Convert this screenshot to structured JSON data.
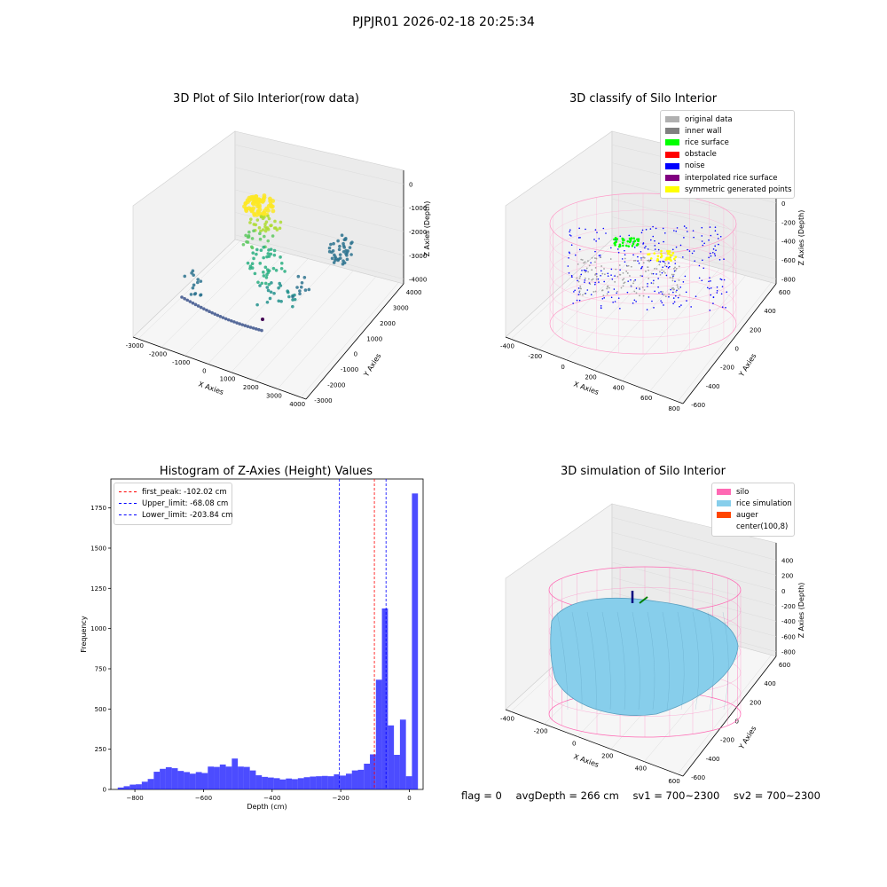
{
  "suptitle": "PJPJR01 2026-02-18 20:25:34",
  "status": {
    "flag": "flag = 0",
    "avg_depth": "avgDepth = 266 cm",
    "sv1": "sv1 = 700~2300",
    "sv2": "sv2 = 700~2300"
  },
  "chart_data": [
    {
      "type": "scatter",
      "title": "3D Plot of Silo Interior(row data)",
      "xlabel": "X Axies",
      "ylabel": "Y Axies",
      "zlabel": "Z Axies (Depth)",
      "xticks": [
        "-3000",
        "-2000",
        "-1000",
        "0",
        "1000",
        "2000",
        "3000",
        "4000"
      ],
      "yticks": [
        "-3000",
        "-2000",
        "-1000",
        "0",
        "1000",
        "2000",
        "3000",
        "4000"
      ],
      "zticks": [
        "0",
        "-1000",
        "-2000",
        "-3000",
        "-4000"
      ],
      "colormap": "viridis"
    },
    {
      "type": "scatter",
      "title": "3D classify of Silo Interior",
      "xlabel": "X Axies",
      "ylabel": "Y Axies",
      "zlabel": "Z Axies (Depth)",
      "xticks": [
        "-400",
        "-200",
        "0",
        "200",
        "400",
        "600",
        "800"
      ],
      "yticks": [
        "-600",
        "-400",
        "-200",
        "0",
        "200",
        "400",
        "600"
      ],
      "zticks": [
        "200",
        "0",
        "-200",
        "-400",
        "-600",
        "-800"
      ],
      "legend": [
        {
          "label": "original data",
          "color": "#b0b0b0"
        },
        {
          "label": "inner wall",
          "color": "#808080"
        },
        {
          "label": "rice surface",
          "color": "#00ff00"
        },
        {
          "label": "obstacle",
          "color": "#ff0000"
        },
        {
          "label": "noise",
          "color": "#0000ff"
        },
        {
          "label": "interpolated rice surface",
          "color": "#800080"
        },
        {
          "label": "symmetric generated points",
          "color": "#ffff00"
        }
      ]
    },
    {
      "type": "bar",
      "title": "Histogram of Z-Axies (Height) Values",
      "xlabel": "Depth (cm)",
      "ylabel": "Frequency",
      "xlim": [
        -870,
        40
      ],
      "ylim": [
        0,
        1930
      ],
      "xticks": [
        -800,
        -600,
        -400,
        -200,
        0
      ],
      "yticks": [
        0,
        250,
        500,
        750,
        1000,
        1250,
        1500,
        1750
      ],
      "bin_start": -850,
      "bin_width": 17.5,
      "values": [
        12,
        20,
        30,
        32,
        48,
        65,
        110,
        128,
        138,
        132,
        115,
        108,
        98,
        108,
        102,
        142,
        140,
        155,
        142,
        192,
        142,
        140,
        118,
        88,
        78,
        74,
        70,
        62,
        68,
        64,
        70,
        76,
        80,
        82,
        84,
        82,
        94,
        86,
        98,
        118,
        122,
        160,
        218,
        682,
        1125,
        398,
        215,
        434,
        82,
        1840
      ],
      "color": "#0000ff",
      "lines": [
        {
          "label": "first_peak: -102.02 cm",
          "x": -102.02,
          "color": "#ff0000"
        },
        {
          "label": "Upper_limit: -68.08 cm",
          "x": -68.08,
          "color": "#0000ff"
        },
        {
          "label": "Lower_limit: -203.84 cm",
          "x": -203.84,
          "color": "#0000ff"
        }
      ]
    },
    {
      "type": "scatter",
      "title": "3D simulation of Silo Interior",
      "xlabel": "X Axies",
      "ylabel": "Y Axies",
      "zlabel": "Z Axies (Depth)",
      "xticks": [
        "-400",
        "-200",
        "0",
        "200",
        "400",
        "600"
      ],
      "yticks": [
        "-600",
        "-400",
        "-200",
        "0",
        "200",
        "400",
        "600"
      ],
      "zticks": [
        "400",
        "200",
        "0",
        "-200",
        "-400",
        "-600",
        "-800"
      ],
      "legend": [
        {
          "label": "silo",
          "color": "#ff69b4"
        },
        {
          "label": "rice simulation",
          "color": "#87ceeb"
        },
        {
          "label": "auger",
          "color": "#ff4500"
        },
        {
          "label": "center(100,8)",
          "color": "#ffffff"
        }
      ]
    }
  ]
}
